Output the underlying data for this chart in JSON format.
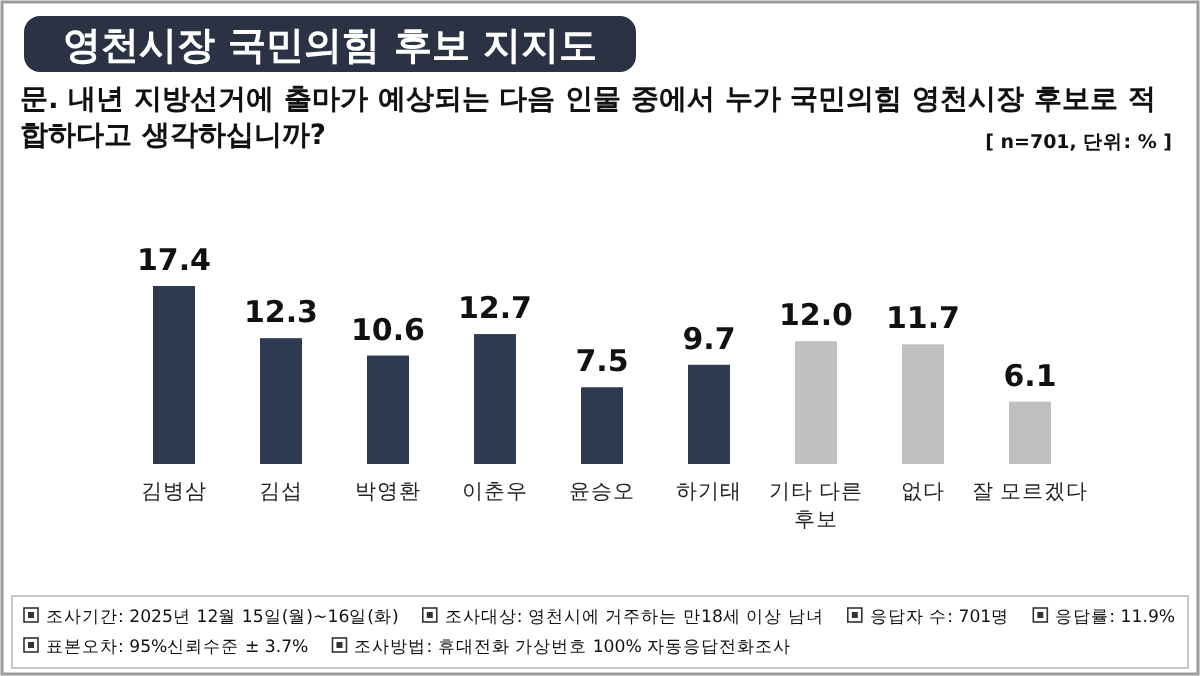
{
  "chart_data": {
    "type": "bar",
    "title": "영천시장 국민의힘 후보 지지도",
    "subtitle": "문. 내년 지방선거에 출마가 예상되는 다음 인물 중에서 누가 국민의힘 영천시장 후보로 적합하다고 생각하십니까?",
    "categories": [
      "김병삼",
      "김섭",
      "박영환",
      "이춘우",
      "윤승오",
      "하기태",
      "기타 다른\n후보",
      "없다",
      "잘 모르겠다"
    ],
    "values": [
      17.4,
      12.3,
      10.6,
      12.7,
      7.5,
      9.7,
      12.0,
      11.7,
      6.1
    ],
    "value_labels": [
      "17.4",
      "12.3",
      "10.6",
      "12.7",
      "7.5",
      "9.7",
      "12.0",
      "11.7",
      "6.1"
    ],
    "colors": [
      "#2e3a4f",
      "#2e3a4f",
      "#2e3a4f",
      "#2e3a4f",
      "#2e3a4f",
      "#2e3a4f",
      "#bfbfbf",
      "#bfbfbf",
      "#bfbfbf"
    ],
    "annotations": [
      "[ n=701, 단위: % ]",
      "조사기간: 2025년 12월 15일(월)~16일(화)",
      "조사대상: 영천시에 거주하는 만18세 이상 남녀",
      "응답자 수: 701명",
      "응답률: 11.9%",
      "표본오차: 95%신뢰수준 ± 3.7%",
      "조사방법: 휴대전화 가상번호 100% 자동응답전화조사"
    ]
  }
}
